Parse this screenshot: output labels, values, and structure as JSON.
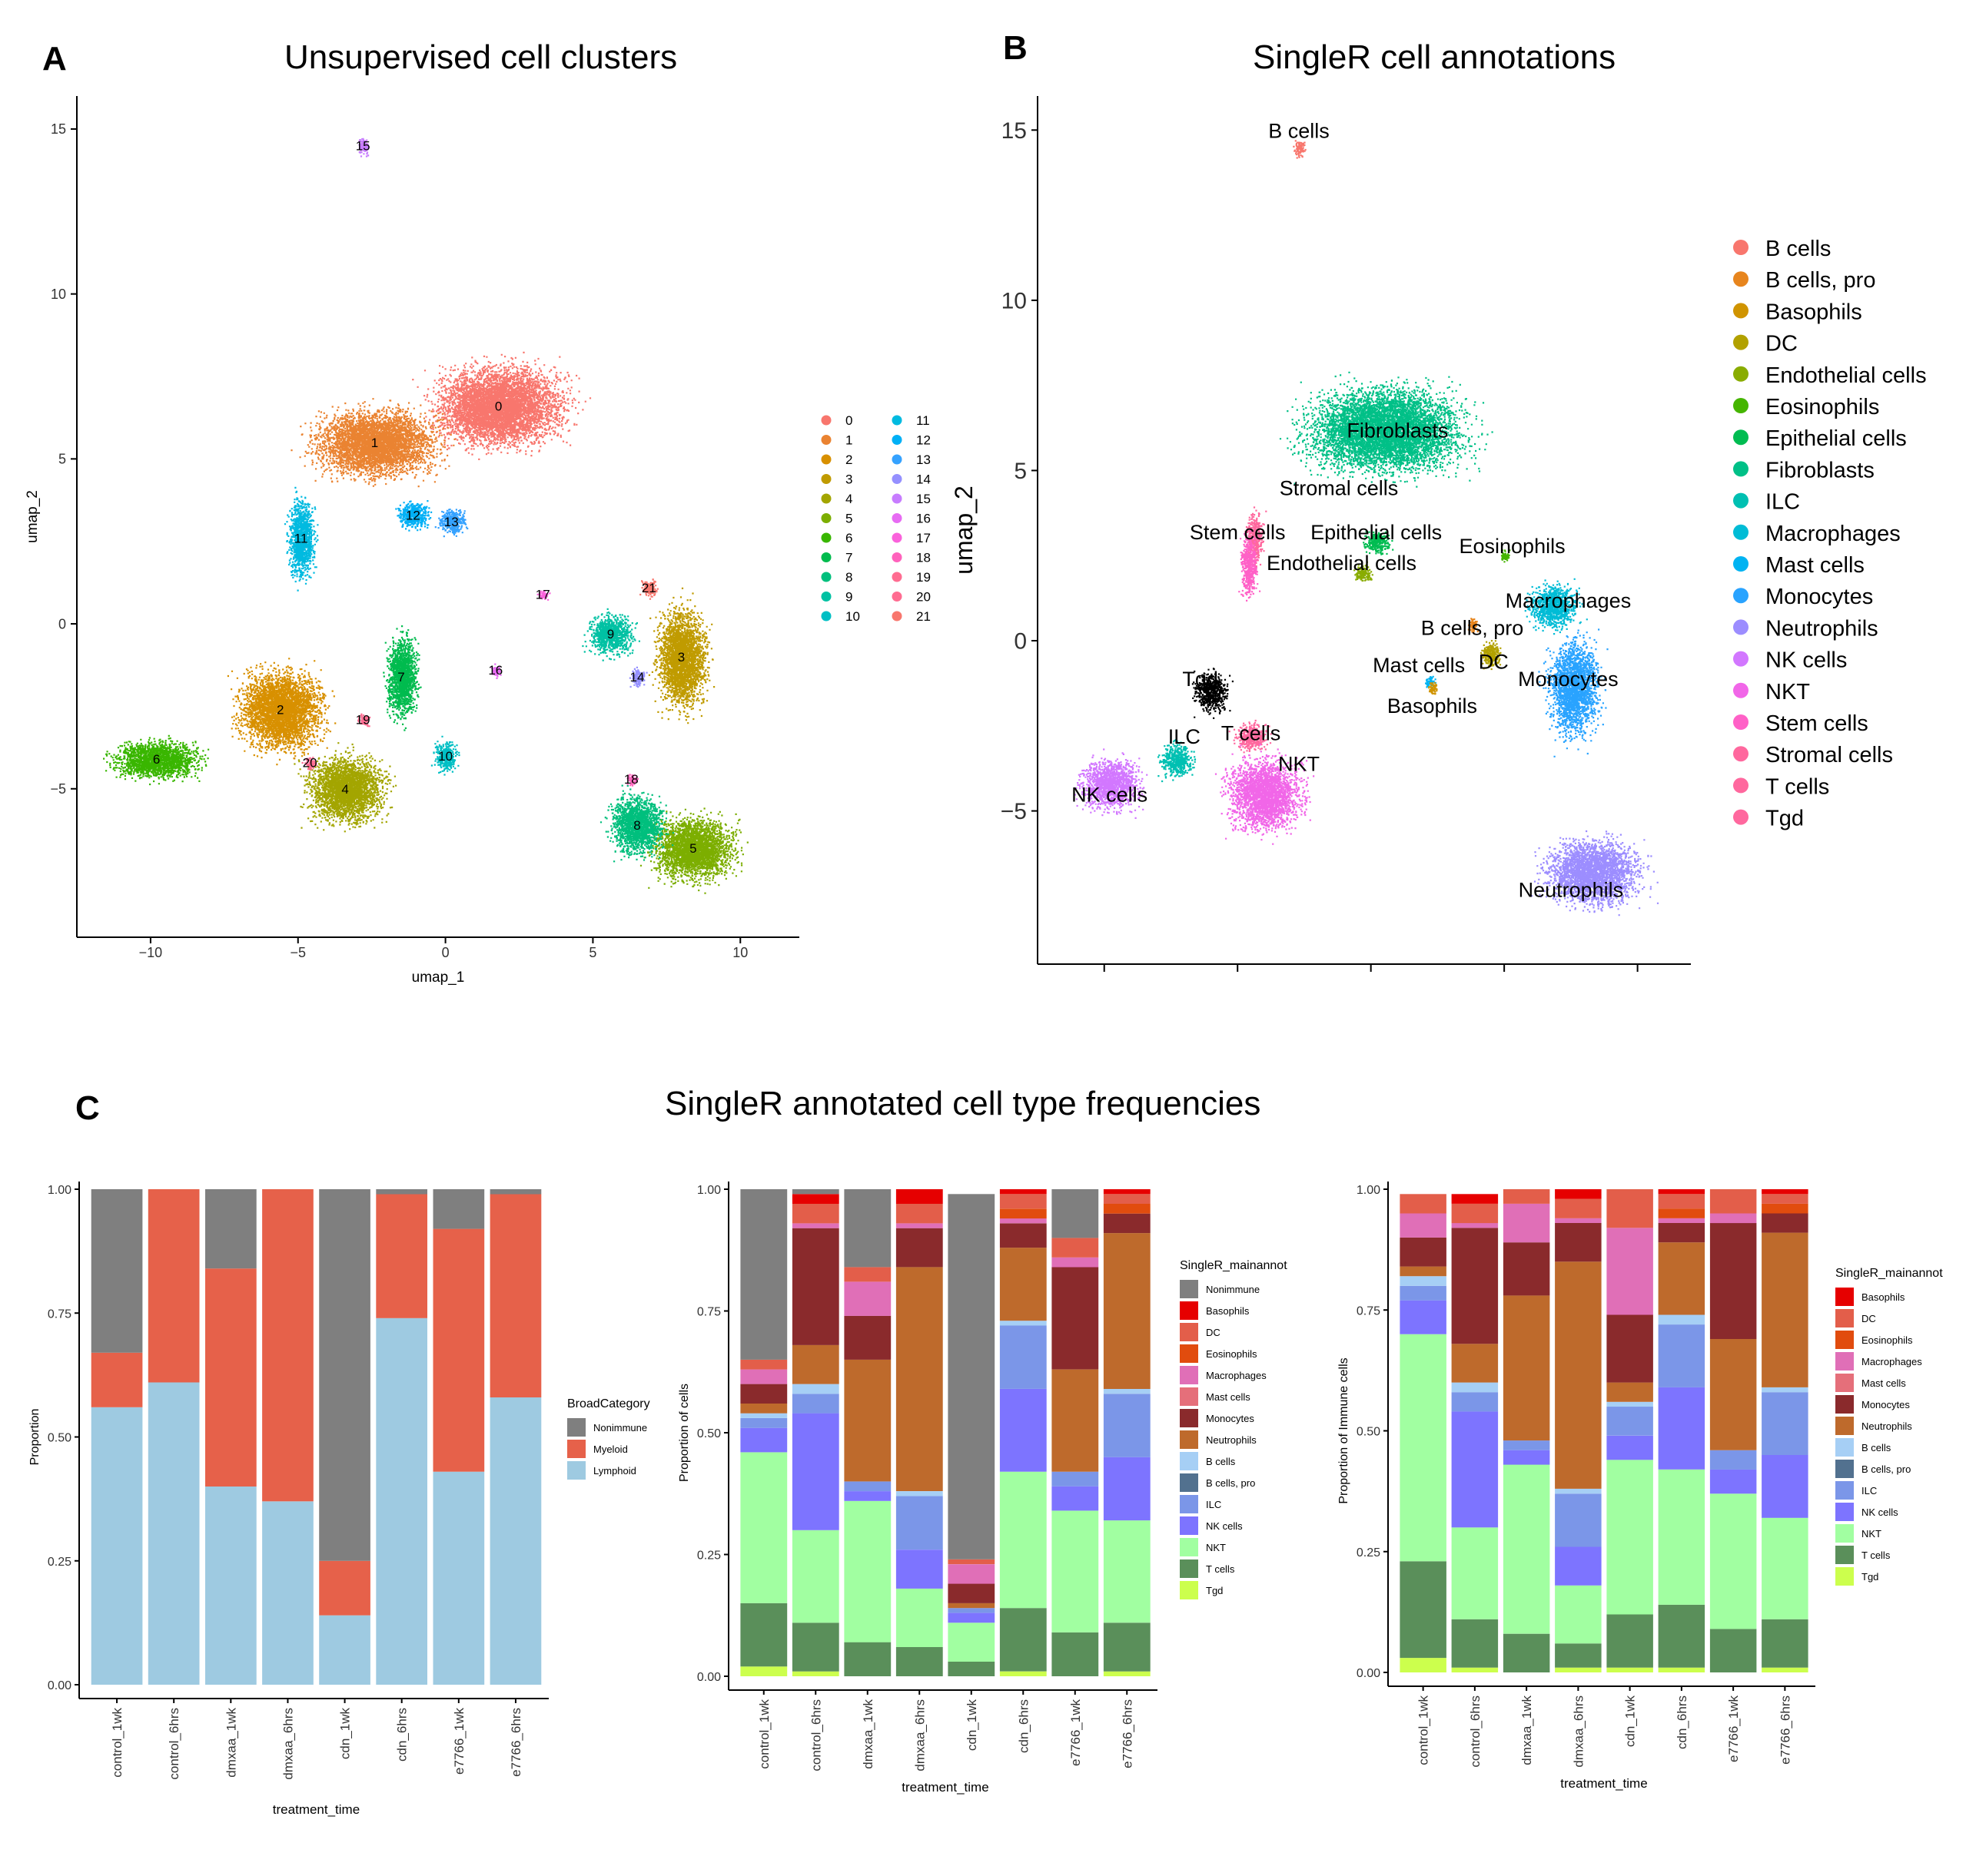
{
  "panels": {
    "a": {
      "letter": "A",
      "title": "Unsupervised cell clusters"
    },
    "b": {
      "letter": "B",
      "title": "SingleR cell annotations"
    },
    "c": {
      "letter": "C",
      "title": "SingleR annotated cell type frequencies"
    }
  },
  "colors": {
    "palette22": [
      "#F8766D",
      "#EA8331",
      "#D89000",
      "#C09B00",
      "#A3A500",
      "#7CAE00",
      "#39B600",
      "#00BB4E",
      "#00BF7D",
      "#00C1A3",
      "#00BFC4",
      "#00BAE0",
      "#00B0F6",
      "#35A2FF",
      "#9590FF",
      "#C77CFF",
      "#E76BF3",
      "#FA62DB",
      "#FF62BC",
      "#FF6C91",
      "#FF6C91",
      "#F8766D"
    ],
    "palette18": [
      "#F8766D",
      "#E7851E",
      "#D09400",
      "#B2A100",
      "#89AC00",
      "#45B500",
      "#00BC51",
      "#00C087",
      "#00C0B2",
      "#00BCD6",
      "#00B3F2",
      "#29A3FF",
      "#9C8DFF",
      "#D277FF",
      "#F166E8",
      "#FF61C7",
      "#FF689E",
      "#FF689E"
    ]
  },
  "chart_data": [
    {
      "id": "A",
      "type": "scatter",
      "title": "Unsupervised cell clusters",
      "xlabel": "umap_1",
      "ylabel": "umap_2",
      "xlim": [
        -12.5,
        12.0
      ],
      "ylim": [
        -9.5,
        16.0
      ],
      "xticks": [
        -10,
        -5,
        0,
        5,
        10
      ],
      "yticks": [
        -5,
        0,
        5,
        10,
        15
      ],
      "grid": false,
      "legend_position": "right",
      "legend": [
        "0",
        "1",
        "2",
        "3",
        "4",
        "5",
        "6",
        "7",
        "8",
        "9",
        "10",
        "11",
        "12",
        "13",
        "14",
        "15",
        "16",
        "17",
        "18",
        "19",
        "20",
        "21"
      ],
      "clusters": [
        {
          "name": "0",
          "x": 1.8,
          "y": 6.6,
          "rx": 3.4,
          "ry": 1.9
        },
        {
          "name": "1",
          "x": -2.4,
          "y": 5.5,
          "rx": 3.2,
          "ry": 1.6
        },
        {
          "name": "2",
          "x": -5.6,
          "y": -2.6,
          "rx": 2.2,
          "ry": 1.9
        },
        {
          "name": "3",
          "x": 8.0,
          "y": -1.0,
          "rx": 1.3,
          "ry": 2.4
        },
        {
          "name": "4",
          "x": -3.4,
          "y": -5.0,
          "rx": 2.0,
          "ry": 1.6
        },
        {
          "name": "5",
          "x": 8.4,
          "y": -6.8,
          "rx": 2.2,
          "ry": 1.5
        },
        {
          "name": "6",
          "x": -9.8,
          "y": -4.1,
          "rx": 2.3,
          "ry": 0.9
        },
        {
          "name": "7",
          "x": -1.5,
          "y": -1.6,
          "rx": 0.8,
          "ry": 2.0
        },
        {
          "name": "8",
          "x": 6.5,
          "y": -6.1,
          "rx": 1.4,
          "ry": 1.4
        },
        {
          "name": "9",
          "x": 5.6,
          "y": -0.3,
          "rx": 1.2,
          "ry": 0.9
        },
        {
          "name": "10",
          "x": 0.0,
          "y": -4.0,
          "rx": 0.6,
          "ry": 0.7
        },
        {
          "name": "11",
          "x": -4.9,
          "y": 2.6,
          "rx": 0.7,
          "ry": 1.9
        },
        {
          "name": "12",
          "x": -1.1,
          "y": 3.3,
          "rx": 0.8,
          "ry": 0.6
        },
        {
          "name": "13",
          "x": 0.2,
          "y": 3.1,
          "rx": 0.7,
          "ry": 0.6
        },
        {
          "name": "14",
          "x": 6.5,
          "y": -1.6,
          "rx": 0.4,
          "ry": 0.4
        },
        {
          "name": "15",
          "x": -2.8,
          "y": 14.5,
          "rx": 0.3,
          "ry": 0.4
        },
        {
          "name": "16",
          "x": 1.7,
          "y": -1.4,
          "rx": 0.25,
          "ry": 0.3
        },
        {
          "name": "17",
          "x": 3.3,
          "y": 0.9,
          "rx": 0.3,
          "ry": 0.2
        },
        {
          "name": "18",
          "x": 6.3,
          "y": -4.7,
          "rx": 0.3,
          "ry": 0.3
        },
        {
          "name": "19",
          "x": -2.8,
          "y": -2.9,
          "rx": 0.3,
          "ry": 0.3
        },
        {
          "name": "20",
          "x": -4.6,
          "y": -4.2,
          "rx": 0.3,
          "ry": 0.3
        },
        {
          "name": "21",
          "x": 6.9,
          "y": 1.1,
          "rx": 0.4,
          "ry": 0.4
        }
      ]
    },
    {
      "id": "B",
      "type": "scatter",
      "title": "SingleR cell annotations",
      "xlabel": "",
      "ylabel": "umap_2",
      "xlim": [
        -12.5,
        12.0
      ],
      "ylim": [
        -9.5,
        16.0
      ],
      "yticks": [
        -5,
        0,
        5,
        10,
        15
      ],
      "grid": false,
      "legend_position": "right",
      "legend": [
        "B cells",
        "B cells, pro",
        "Basophils",
        "DC",
        "Endothelial cells",
        "Eosinophils",
        "Epithelial cells",
        "Fibroblasts",
        "ILC",
        "Macrophages",
        "Mast cells",
        "Monocytes",
        "Neutrophils",
        "NK cells",
        "NKT",
        "Stem cells",
        "Stromal cells",
        "T cells",
        "Tgd"
      ],
      "labels": [
        {
          "name": "B cells",
          "x": -2.7,
          "y": 15.0,
          "cx": -2.7,
          "cy": 14.5,
          "ci": 0,
          "rx": 0.3,
          "ry": 0.4
        },
        {
          "name": "Fibroblasts",
          "x": 1.0,
          "y": 6.2,
          "cx": 0.5,
          "cy": 6.2,
          "ci": 7,
          "rx": 4.6,
          "ry": 2.0
        },
        {
          "name": "Stromal cells",
          "x": -1.2,
          "y": 4.5,
          "cx": -4.4,
          "cy": 3.0,
          "ci": 16,
          "rx": 0.5,
          "ry": 1.2
        },
        {
          "name": "Stem cells",
          "x": -5.0,
          "y": 3.2,
          "cx": -4.6,
          "cy": 2.2,
          "ci": 15,
          "rx": 0.5,
          "ry": 1.4
        },
        {
          "name": "Epithelial cells",
          "x": 0.2,
          "y": 3.2,
          "cx": 0.2,
          "cy": 2.9,
          "ci": 6,
          "rx": 0.8,
          "ry": 0.5
        },
        {
          "name": "Endothelial cells",
          "x": -1.1,
          "y": 2.3,
          "cx": -0.3,
          "cy": 2.0,
          "ci": 4,
          "rx": 0.5,
          "ry": 0.4
        },
        {
          "name": "Eosinophils",
          "x": 5.3,
          "y": 2.8,
          "cx": 5.0,
          "cy": 2.5,
          "ci": 5,
          "rx": 0.3,
          "ry": 0.3
        },
        {
          "name": "Macrophages",
          "x": 7.4,
          "y": 1.2,
          "cx": 6.8,
          "cy": 1.0,
          "ci": 9,
          "rx": 1.4,
          "ry": 1.0
        },
        {
          "name": "B cells, pro",
          "x": 3.8,
          "y": 0.4,
          "cx": 3.8,
          "cy": 0.5,
          "ci": 1,
          "rx": 0.3,
          "ry": 0.3
        },
        {
          "name": "Mast cells",
          "x": 1.8,
          "y": -0.7,
          "cx": 2.2,
          "cy": -1.2,
          "ci": 10,
          "rx": 0.3,
          "ry": 0.3
        },
        {
          "name": "DC",
          "x": 4.6,
          "y": -0.6,
          "cx": 4.5,
          "cy": -0.4,
          "ci": 3,
          "rx": 0.6,
          "ry": 0.6
        },
        {
          "name": "Basophils",
          "x": 2.3,
          "y": -1.9,
          "cx": 2.3,
          "cy": -1.4,
          "ci": 2,
          "rx": 0.3,
          "ry": 0.3
        },
        {
          "name": "Monocytes",
          "x": 7.4,
          "y": -1.1,
          "cx": 7.6,
          "cy": -1.4,
          "ci": 11,
          "rx": 1.5,
          "ry": 2.2
        },
        {
          "name": "Tgd",
          "x": -6.4,
          "y": -1.1,
          "cx": -6.0,
          "cy": -1.5,
          "ci": 18,
          "rx": 1.0,
          "ry": 0.9
        },
        {
          "name": "T cells",
          "x": -4.5,
          "y": -2.7,
          "cx": -4.5,
          "cy": -2.8,
          "ci": 17,
          "rx": 1.0,
          "ry": 0.6
        },
        {
          "name": "ILC",
          "x": -7.0,
          "y": -2.8,
          "cx": -7.3,
          "cy": -3.5,
          "ci": 8,
          "rx": 0.9,
          "ry": 0.8
        },
        {
          "name": "NKT",
          "x": -2.7,
          "y": -3.6,
          "cx": -4.0,
          "cy": -4.5,
          "ci": 14,
          "rx": 2.2,
          "ry": 1.7
        },
        {
          "name": "NK cells",
          "x": -9.8,
          "y": -4.5,
          "cx": -9.8,
          "cy": -4.2,
          "ci": 13,
          "rx": 1.7,
          "ry": 1.2
        },
        {
          "name": "Neutrophils",
          "x": 7.5,
          "y": -7.3,
          "cx": 8.3,
          "cy": -6.8,
          "ci": 12,
          "rx": 2.7,
          "ry": 1.5
        }
      ]
    },
    {
      "id": "C1",
      "type": "bar",
      "stacked": true,
      "xlabel": "treatment_time",
      "ylabel": "Proportion",
      "ylim": [
        0,
        1
      ],
      "yticks": [
        "0.00",
        "0.25",
        "0.50",
        "0.75",
        "1.00"
      ],
      "categories": [
        "control_1wk",
        "control_6hrs",
        "dmxaa_1wk",
        "dmxaa_6hrs",
        "cdn_1wk",
        "cdn_6hrs",
        "e7766_1wk",
        "e7766_6hrs"
      ],
      "legend_title": "BroadCategory",
      "legend_position": "right",
      "series": [
        {
          "name": "Lymphoid",
          "color": "#9ECAE1",
          "values": [
            0.56,
            0.61,
            0.4,
            0.37,
            0.14,
            0.74,
            0.43,
            0.58
          ]
        },
        {
          "name": "Myeloid",
          "color": "#E6614A",
          "values": [
            0.11,
            0.39,
            0.44,
            0.63,
            0.11,
            0.25,
            0.49,
            0.41
          ]
        },
        {
          "name": "Nonimmune",
          "color": "#7F7F7F",
          "values": [
            0.33,
            0.0,
            0.16,
            0.0,
            0.75,
            0.01,
            0.08,
            0.01
          ]
        }
      ]
    },
    {
      "id": "C2",
      "type": "bar",
      "stacked": true,
      "xlabel": "treatment_time",
      "ylabel": "Proportion of cells",
      "ylim": [
        0,
        1
      ],
      "yticks": [
        "0.00",
        "0.25",
        "0.50",
        "0.75",
        "1.00"
      ],
      "categories": [
        "control_1wk",
        "control_6hrs",
        "dmxaa_1wk",
        "dmxaa_6hrs",
        "cdn_1wk",
        "cdn_6hrs",
        "e7766_1wk",
        "e7766_6hrs"
      ],
      "legend_title": "SingleR_mainannot",
      "legend_position": "right",
      "series": [
        {
          "name": "Tgd",
          "color": "#CCFF4D",
          "values": [
            0.02,
            0.01,
            0.0,
            0.0,
            0.0,
            0.01,
            0.0,
            0.01
          ]
        },
        {
          "name": "T cells",
          "color": "#5A8F5A",
          "values": [
            0.13,
            0.1,
            0.07,
            0.06,
            0.03,
            0.13,
            0.09,
            0.1
          ]
        },
        {
          "name": "NKT",
          "color": "#A1FFA1",
          "values": [
            0.31,
            0.19,
            0.29,
            0.12,
            0.08,
            0.28,
            0.25,
            0.21
          ]
        },
        {
          "name": "NK cells",
          "color": "#7D74FF",
          "values": [
            0.05,
            0.24,
            0.02,
            0.08,
            0.02,
            0.17,
            0.05,
            0.13
          ]
        },
        {
          "name": "ILC",
          "color": "#7B96E8",
          "values": [
            0.02,
            0.04,
            0.02,
            0.11,
            0.01,
            0.13,
            0.03,
            0.13
          ]
        },
        {
          "name": "B cells, pro",
          "color": "#52718F",
          "values": [
            0.0,
            0.0,
            0.0,
            0.0,
            0.0,
            0.0,
            0.0,
            0.0
          ]
        },
        {
          "name": "B cells",
          "color": "#A6CFF5",
          "values": [
            0.01,
            0.02,
            0.0,
            0.01,
            0.0,
            0.01,
            0.0,
            0.01
          ]
        },
        {
          "name": "Neutrophils",
          "color": "#BE6A2C",
          "values": [
            0.02,
            0.08,
            0.25,
            0.46,
            0.01,
            0.15,
            0.21,
            0.32
          ]
        },
        {
          "name": "Monocytes",
          "color": "#8A2A2C",
          "values": [
            0.04,
            0.24,
            0.09,
            0.08,
            0.04,
            0.05,
            0.21,
            0.04
          ]
        },
        {
          "name": "Mast cells",
          "color": "#E56F7A",
          "values": [
            0.0,
            0.0,
            0.0,
            0.0,
            0.0,
            0.0,
            0.0,
            0.0
          ]
        },
        {
          "name": "Macrophages",
          "color": "#E06FB7",
          "values": [
            0.03,
            0.01,
            0.07,
            0.01,
            0.04,
            0.01,
            0.02,
            0.0
          ]
        },
        {
          "name": "Eosinophils",
          "color": "#E14C0E",
          "values": [
            0.0,
            0.0,
            0.0,
            0.0,
            0.0,
            0.02,
            0.0,
            0.02
          ]
        },
        {
          "name": "DC",
          "color": "#E35E4A",
          "values": [
            0.02,
            0.04,
            0.03,
            0.04,
            0.01,
            0.03,
            0.04,
            0.02
          ]
        },
        {
          "name": "Basophils",
          "color": "#E60000",
          "values": [
            0.0,
            0.02,
            0.0,
            0.03,
            0.0,
            0.01,
            0.0,
            0.01
          ]
        },
        {
          "name": "Nonimmune",
          "color": "#7F7F7F",
          "values": [
            0.35,
            0.01,
            0.16,
            0.0,
            0.75,
            0.0,
            0.1,
            0.0
          ]
        }
      ],
      "legend": [
        "Nonimmune",
        "Basophils",
        "DC",
        "Eosinophils",
        "Macrophages",
        "Mast cells",
        "Monocytes",
        "Neutrophils",
        "B cells",
        "B cells, pro",
        "ILC",
        "NK cells",
        "NKT",
        "T cells",
        "Tgd"
      ]
    },
    {
      "id": "C3",
      "type": "bar",
      "stacked": true,
      "xlabel": "treatment_time",
      "ylabel": "Proportion of Immune cells",
      "ylim": [
        0,
        1
      ],
      "yticks": [
        "0.00",
        "0.25",
        "0.50",
        "0.75",
        "1.00"
      ],
      "categories": [
        "control_1wk",
        "control_6hrs",
        "dmxaa_1wk",
        "dmxaa_6hrs",
        "cdn_1wk",
        "cdn_6hrs",
        "e7766_1wk",
        "e7766_6hrs"
      ],
      "legend_title": "SingleR_mainannot",
      "legend_position": "right",
      "series": [
        {
          "name": "Tgd",
          "color": "#CCFF4D",
          "values": [
            0.03,
            0.01,
            0.0,
            0.01,
            0.01,
            0.01,
            0.0,
            0.01
          ]
        },
        {
          "name": "T cells",
          "color": "#5A8F5A",
          "values": [
            0.2,
            0.1,
            0.08,
            0.05,
            0.11,
            0.13,
            0.09,
            0.1
          ]
        },
        {
          "name": "NKT",
          "color": "#A1FFA1",
          "values": [
            0.47,
            0.19,
            0.35,
            0.12,
            0.32,
            0.28,
            0.28,
            0.21
          ]
        },
        {
          "name": "NK cells",
          "color": "#7D74FF",
          "values": [
            0.07,
            0.24,
            0.03,
            0.08,
            0.05,
            0.17,
            0.05,
            0.13
          ]
        },
        {
          "name": "ILC",
          "color": "#7B96E8",
          "values": [
            0.03,
            0.04,
            0.02,
            0.11,
            0.06,
            0.13,
            0.04,
            0.13
          ]
        },
        {
          "name": "B cells, pro",
          "color": "#52718F",
          "values": [
            0.0,
            0.0,
            0.0,
            0.0,
            0.0,
            0.0,
            0.0,
            0.0
          ]
        },
        {
          "name": "B cells",
          "color": "#A6CFF5",
          "values": [
            0.02,
            0.02,
            0.0,
            0.01,
            0.01,
            0.02,
            0.0,
            0.01
          ]
        },
        {
          "name": "Neutrophils",
          "color": "#BE6A2C",
          "values": [
            0.02,
            0.08,
            0.3,
            0.47,
            0.04,
            0.15,
            0.23,
            0.32
          ]
        },
        {
          "name": "Monocytes",
          "color": "#8A2A2C",
          "values": [
            0.06,
            0.24,
            0.11,
            0.08,
            0.14,
            0.04,
            0.24,
            0.04
          ]
        },
        {
          "name": "Mast cells",
          "color": "#E56F7A",
          "values": [
            0.0,
            0.0,
            0.0,
            0.0,
            0.0,
            0.0,
            0.0,
            0.0
          ]
        },
        {
          "name": "Macrophages",
          "color": "#E06FB7",
          "values": [
            0.05,
            0.01,
            0.08,
            0.01,
            0.18,
            0.01,
            0.02,
            0.0
          ]
        },
        {
          "name": "Eosinophils",
          "color": "#E14C0E",
          "values": [
            0.0,
            0.0,
            0.0,
            0.0,
            0.0,
            0.02,
            0.0,
            0.02
          ]
        },
        {
          "name": "DC",
          "color": "#E35E4A",
          "values": [
            0.04,
            0.04,
            0.03,
            0.04,
            0.08,
            0.03,
            0.05,
            0.02
          ]
        },
        {
          "name": "Basophils",
          "color": "#E60000",
          "values": [
            0.0,
            0.02,
            0.0,
            0.03,
            0.0,
            0.01,
            0.0,
            0.01
          ]
        }
      ],
      "legend": [
        "Basophils",
        "DC",
        "Eosinophils",
        "Macrophages",
        "Mast cells",
        "Monocytes",
        "Neutrophils",
        "B cells",
        "B cells, pro",
        "ILC",
        "NK cells",
        "NKT",
        "T cells",
        "Tgd"
      ]
    }
  ]
}
